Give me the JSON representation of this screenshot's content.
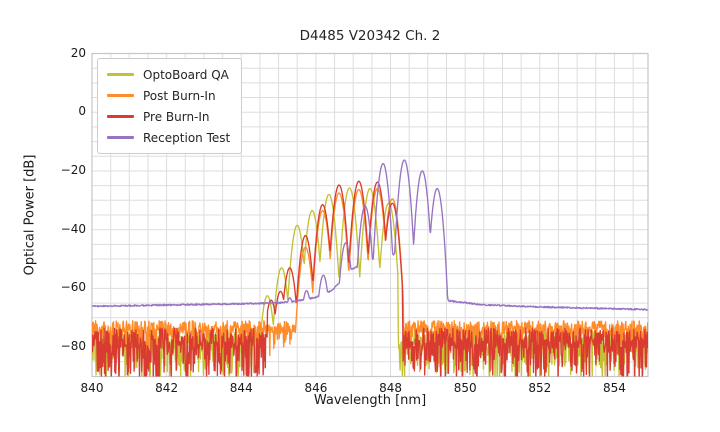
{
  "chart_data": {
    "type": "line",
    "title": "D4485 V20342 Ch. 2",
    "xlabel": "Wavelength [nm]",
    "ylabel": "Optical Power [dB]",
    "xlim": [
      840,
      854.9
    ],
    "ylim": [
      -90,
      20
    ],
    "xticks": [
      840,
      842,
      844,
      846,
      848,
      850,
      852,
      854
    ],
    "yticks": [
      20,
      0,
      -20,
      -40,
      -60,
      -80
    ],
    "grid": {
      "x_step": 0.5,
      "y_step": 5,
      "color": "#dddde1",
      "frame_color": "#c6c6ca"
    },
    "legend_position": "upper left",
    "series": [
      {
        "name": "OptoBoard QA",
        "color": "#c3c233",
        "mode_width": 0.05,
        "signal_range": [
          844.4,
          848.2
        ],
        "modes": [
          [
            844.7,
            -62.5
          ],
          [
            845.08,
            -53
          ],
          [
            845.5,
            -38.5
          ],
          [
            845.9,
            -33.5
          ],
          [
            846.35,
            -28
          ],
          [
            846.9,
            -25.8
          ],
          [
            847.45,
            -26
          ],
          [
            847.95,
            -31
          ]
        ],
        "noise": [
          {
            "range": [
              840,
              844.55
            ],
            "base": -77.5,
            "up": 3,
            "spike": 13,
            "p": 0.45
          },
          {
            "range": [
              848.2,
              854.9
            ],
            "base": -77.5,
            "up": 3,
            "spike": 13,
            "p": 0.45
          }
        ]
      },
      {
        "name": "Post Burn-In",
        "color": "#ff8c2a",
        "mode_width": 0.05,
        "signal_range": [
          845.35,
          848.35
        ],
        "modes": [
          [
            845.72,
            -46
          ],
          [
            846.18,
            -33.5
          ],
          [
            846.62,
            -27.5
          ],
          [
            847.15,
            -26.3
          ],
          [
            847.65,
            -26
          ],
          [
            848.05,
            -29.5
          ]
        ],
        "noise": [
          {
            "range": [
              840,
              845.5
            ],
            "base": -73.2,
            "up": 2.2,
            "spike": 8,
            "p": 0.35
          },
          {
            "range": [
              848.35,
              854.9
            ],
            "base": -73.2,
            "up": 2.2,
            "spike": 8,
            "p": 0.35
          }
        ]
      },
      {
        "name": "Pre Burn-In",
        "color": "#d93b31",
        "mode_width": 0.05,
        "signal_range": [
          844.7,
          848.32
        ],
        "modes": [
          [
            844.8,
            -64
          ],
          [
            845.05,
            -61
          ],
          [
            845.3,
            -53
          ],
          [
            845.72,
            -42
          ],
          [
            846.18,
            -31.5
          ],
          [
            846.62,
            -24.8
          ],
          [
            847.15,
            -23.5
          ],
          [
            847.65,
            -23.8
          ],
          [
            848.05,
            -31
          ]
        ],
        "noise": [
          {
            "range": [
              840,
              845.1
            ],
            "base": -77,
            "up": 3.5,
            "spike": 14,
            "p": 0.45
          },
          {
            "range": [
              848.32,
              854.9
            ],
            "base": -77,
            "up": 3.5,
            "spike": 14,
            "p": 0.45
          }
        ]
      },
      {
        "name": "Reception Test",
        "color": "#9774c2",
        "mode_width": 0.046,
        "modes": [
          [
            845.3,
            -63.2
          ],
          [
            845.75,
            -60.8
          ],
          [
            846.2,
            -55.5
          ],
          [
            846.8,
            -44.5
          ],
          [
            847.32,
            -32
          ],
          [
            847.8,
            -17.5
          ],
          [
            848.37,
            -16.3
          ],
          [
            848.85,
            -20
          ],
          [
            849.25,
            -26
          ]
        ],
        "floor": [
          [
            840,
            -66.1
          ],
          [
            845.0,
            -65.0
          ],
          [
            845.5,
            -64.3
          ],
          [
            846.0,
            -63.0
          ],
          [
            846.45,
            -60.5
          ],
          [
            846.95,
            -53.5
          ],
          [
            847.55,
            -50
          ],
          [
            848.08,
            -48.5
          ],
          [
            848.6,
            -48.5
          ],
          [
            849.05,
            -43
          ],
          [
            849.45,
            -58
          ],
          [
            849.55,
            -64.2
          ],
          [
            850.5,
            -65.6
          ],
          [
            852,
            -66.3
          ],
          [
            854.9,
            -67.2
          ]
        ],
        "jitter": 0.25
      }
    ]
  }
}
